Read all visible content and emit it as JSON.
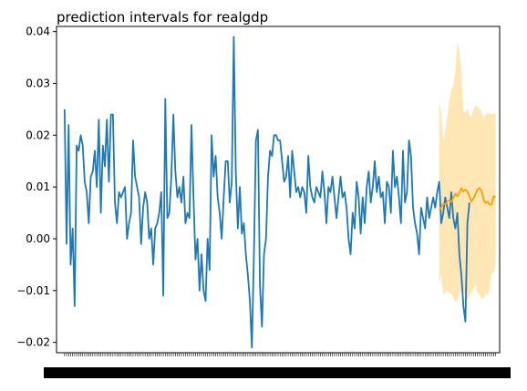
{
  "chart_data": {
    "type": "line",
    "title": "prediction intervals for realgdp",
    "xlabel": "",
    "ylabel": "",
    "ylim": [
      -0.022,
      0.041
    ],
    "yticks": [
      -0.02,
      -0.01,
      0.0,
      0.01,
      0.02,
      0.03,
      0.04
    ],
    "ytick_labels": [
      "−0.02",
      "−0.01",
      "0.00",
      "0.01",
      "0.02",
      "0.03",
      "0.04"
    ],
    "xlim": [
      -4,
      216
    ],
    "grid": false,
    "colors": {
      "history": "#1f77b4",
      "forecast": "#ff9f00",
      "interval": "#ffe6b5"
    },
    "series": [
      {
        "x_start": 0,
        "values": [
          0.025,
          -0.001,
          0.022,
          -0.005,
          0.002,
          -0.013,
          0.018,
          0.017,
          0.02,
          0.018,
          0.011,
          0.009,
          0.003,
          0.012,
          0.013,
          0.017,
          0.01,
          0.023,
          0.005,
          0.018,
          0.014,
          0.023,
          0.011,
          0.024,
          0.024,
          0.007,
          0.003,
          0.009,
          0.008,
          0.009,
          0.01,
          0.0,
          0.003,
          0.005,
          0.019,
          0.012,
          0.01,
          0.008,
          -0.001,
          0.006,
          0.009,
          0.007,
          0.0,
          0.002,
          -0.005,
          0.002,
          0.003,
          0.005,
          0.009,
          -0.011,
          0.027,
          0.004,
          0.005,
          0.012,
          0.024,
          0.013,
          0.008,
          0.01,
          0.007,
          0.012,
          0.003,
          0.005,
          0.004,
          0.022,
          0.008,
          -0.004,
          0.0,
          -0.01,
          -0.003,
          -0.01,
          -0.012,
          0.0,
          -0.006,
          0.02,
          0.012,
          0.016,
          0.008,
          0.005,
          0.0,
          0.008,
          0.015,
          0.015,
          0.007,
          0.011,
          0.039,
          0.013,
          0.002,
          0.01,
          0.001,
          0.003,
          -0.003,
          -0.007,
          -0.012,
          -0.021,
          -0.003,
          0.019,
          0.021,
          -0.009,
          -0.017,
          -0.003,
          0.0,
          0.012,
          0.017,
          0.016,
          0.02,
          0.02,
          0.019,
          0.019,
          0.015,
          0.011,
          0.012,
          0.016,
          0.008,
          0.017,
          0.013,
          0.009,
          0.01,
          0.008,
          0.01,
          0.009,
          0.005,
          0.016,
          0.01,
          0.008,
          0.007,
          0.01,
          0.009,
          0.008,
          0.013,
          0.009,
          0.003,
          0.01,
          0.009,
          0.012,
          0.008,
          0.004,
          0.008,
          0.012,
          0.008,
          0.009,
          0.006,
          0.0,
          -0.003,
          0.005,
          0.002,
          0.011,
          0.008,
          0.001,
          0.008,
          0.003,
          0.01,
          0.013,
          0.007,
          0.01,
          0.015,
          0.009,
          0.012,
          0.008,
          0.009,
          0.003,
          0.011,
          0.01,
          0.005,
          0.017,
          0.01,
          0.012,
          0.008,
          0.003,
          0.017,
          0.007,
          0.009,
          0.019,
          0.016,
          0.006,
          0.003,
          0.001,
          -0.003,
          0.006,
          0.004,
          0.002,
          0.008,
          0.004,
          0.006,
          0.008,
          0.006,
          0.009,
          0.011,
          0.003,
          0.005,
          0.008,
          0.006,
          0.004,
          0.009,
          0.004,
          0.002,
          0.005,
          -0.003,
          -0.007,
          -0.013,
          -0.016,
          0.003,
          0.007
        ]
      },
      {
        "x_start": 186,
        "values": [
          0.0055,
          0.006,
          0.0068,
          0.0066,
          0.0072,
          0.0074,
          0.0071,
          0.0079,
          0.0087,
          0.0082,
          0.0088,
          0.0098,
          0.0091,
          0.0095,
          0.0091,
          0.0082,
          0.0072,
          0.0078,
          0.0086,
          0.0095,
          0.0098,
          0.0093,
          0.0076,
          0.0069,
          0.0072,
          0.0066,
          0.0066,
          0.0082,
          0.008
        ]
      }
    ],
    "interval": {
      "x_start": 186,
      "lower": [
        -0.009,
        -0.007,
        -0.0107,
        -0.0104,
        -0.01,
        -0.0105,
        -0.0106,
        -0.0113,
        -0.0123,
        -0.0118,
        -0.0108,
        -0.0093,
        -0.0104,
        -0.0109,
        -0.0118,
        -0.0111,
        -0.0104,
        -0.0097,
        -0.0088,
        -0.0104,
        -0.0108,
        -0.0116,
        -0.0114,
        -0.0107,
        -0.0109,
        -0.0101,
        -0.0065,
        -0.0067,
        -0.0049
      ],
      "upper": [
        0.0266,
        0.0243,
        0.0191,
        0.0208,
        0.0236,
        0.0267,
        0.0287,
        0.0294,
        0.0323,
        0.038,
        0.0362,
        0.0322,
        0.0247,
        0.0243,
        0.0253,
        0.0238,
        0.0234,
        0.025,
        0.0258,
        0.0254,
        0.0252,
        0.0245,
        0.0232,
        0.0239,
        0.0244,
        0.0242,
        0.0241,
        0.0241,
        0.0242
      ]
    }
  }
}
